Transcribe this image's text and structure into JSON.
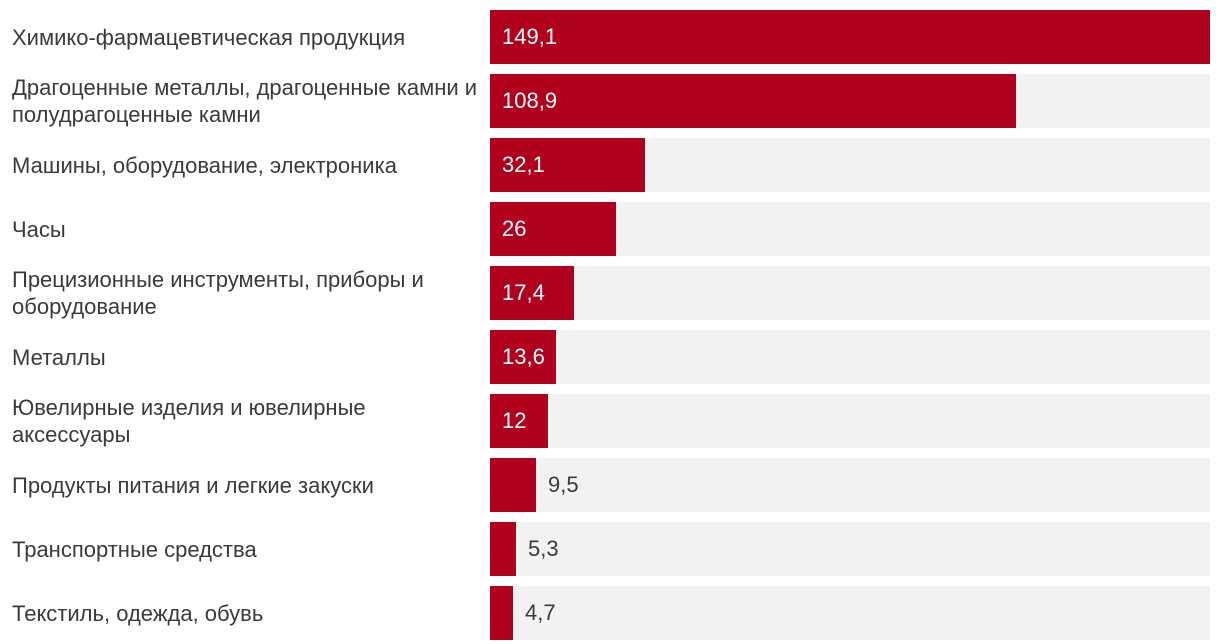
{
  "chart_data": {
    "type": "bar",
    "orientation": "horizontal",
    "categories": [
      "Химико-фармацевтическая продукция",
      "Драгоценные металлы, драгоценные камни и полудрагоценные камни",
      "Машины, оборудование, электроника",
      "Часы",
      "Прецизионные инструменты, приборы и оборудование",
      "Металлы",
      "Ювелирные изделия и ювелирные аксессуары",
      "Продукты питания и легкие закуски",
      "Транспортные средства",
      "Текстиль, одежда, обувь"
    ],
    "values": [
      149.1,
      108.9,
      32.1,
      26,
      17.4,
      13.6,
      12,
      9.5,
      5.3,
      4.7
    ],
    "value_labels": [
      "149,1",
      "108,9",
      "32,1",
      "26",
      "17,4",
      "13,6",
      "12",
      "9,5",
      "5,3",
      "4,7"
    ],
    "xlim": [
      0,
      149.1
    ],
    "grid": false,
    "legend": "none",
    "colors": {
      "bar": "#b0001e",
      "track": "#f2f2f2",
      "label": "#3a3a3a",
      "value_inside": "#ffffff"
    }
  }
}
